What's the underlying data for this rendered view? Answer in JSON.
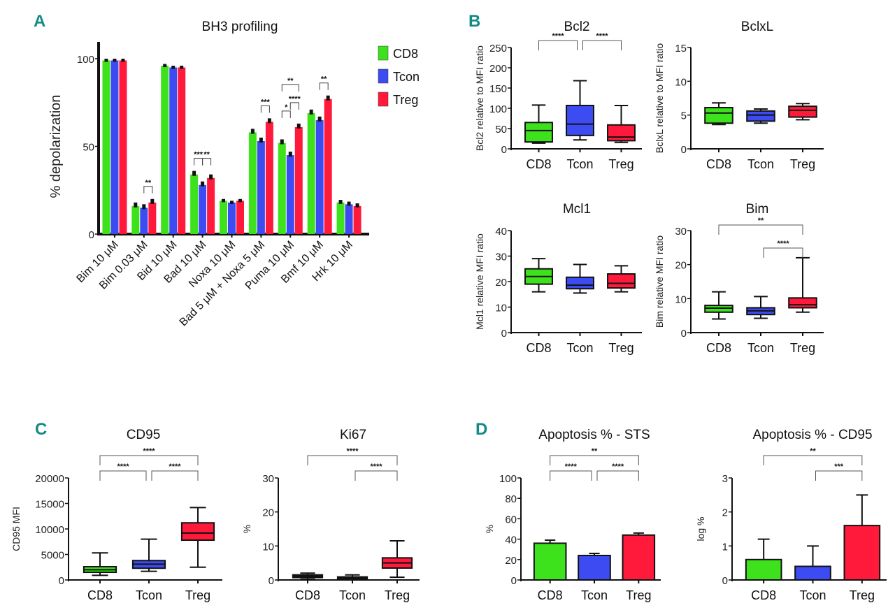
{
  "panel_labels": [
    "A",
    "B",
    "C",
    "D"
  ],
  "chart_data": [
    {
      "id": "A",
      "type": "bar",
      "title": "BH3 profiling",
      "ylabel": "% depolarization",
      "ylim": [
        0,
        100
      ],
      "yticks": [
        0,
        50,
        100
      ],
      "categories": [
        "Bim 10 μM",
        "Bim 0.03 μM",
        "Bid 10 μM",
        "Bad 10 μM",
        "Noxa 10 μM",
        "Bad 5 μM + Noxa 5 μM",
        "Puma 10 μM",
        "Bmf 10 μM",
        "Hrk 10 μM"
      ],
      "legend": {
        "placement": "top-right",
        "entries": [
          "CD8",
          "Tcon",
          "Treg"
        ]
      },
      "series": [
        {
          "name": "CD8",
          "color": "#3ee21c",
          "values": [
            99,
            16,
            96,
            34,
            19,
            58,
            52,
            69,
            18
          ],
          "err": [
            1,
            2,
            1,
            2,
            1,
            2,
            2,
            2,
            1.5
          ]
        },
        {
          "name": "Tcon",
          "color": "#3d4cf2",
          "values": [
            99,
            15,
            95,
            28,
            18,
            53,
            45,
            65,
            17
          ],
          "err": [
            1,
            2,
            1,
            2,
            1,
            2,
            2,
            2,
            1.5
          ]
        },
        {
          "name": "Treg",
          "color": "#ff1a3c",
          "values": [
            99,
            18,
            95,
            32,
            19,
            64,
            61,
            77,
            16
          ],
          "err": [
            1,
            2,
            1,
            2,
            1,
            2,
            2,
            2,
            1.5
          ]
        }
      ],
      "brackets": [
        {
          "cat": 1,
          "from": 1,
          "to": 2,
          "label": "**"
        },
        {
          "cat": 3,
          "from": 0,
          "to": 1,
          "label": "***"
        },
        {
          "cat": 3,
          "from": 1,
          "to": 2,
          "label": "**"
        },
        {
          "cat": 5,
          "from": 1,
          "to": 2,
          "label": "***"
        },
        {
          "cat": 6,
          "from": 0,
          "to": 1,
          "label": "*"
        },
        {
          "cat": 6,
          "from": 1,
          "to": 2,
          "label": "****"
        },
        {
          "cat": 6,
          "from": 0,
          "to": 2,
          "label": "**"
        },
        {
          "cat": 7,
          "from": 1,
          "to": 2,
          "label": "**"
        }
      ]
    },
    {
      "id": "B-Bcl2",
      "type": "box",
      "title": "Bcl2",
      "ylabel": "Bcl2 relative to MFI ratio",
      "ylim": [
        0,
        250
      ],
      "yticks": [
        0,
        50,
        100,
        150,
        200,
        250
      ],
      "categories": [
        "CD8",
        "Tcon",
        "Treg"
      ],
      "colors": [
        "#3ee21c",
        "#3d4cf2",
        "#ff1a3c"
      ],
      "boxes": [
        [
          14,
          17,
          45,
          65,
          108
        ],
        [
          22,
          33,
          61,
          107,
          168
        ],
        [
          16,
          20,
          29,
          59,
          107
        ]
      ],
      "brackets": [
        {
          "from": 0,
          "to": 1,
          "label": "****",
          "level": 0
        },
        {
          "from": 1,
          "to": 2,
          "label": "****",
          "level": 0
        }
      ]
    },
    {
      "id": "B-BclxL",
      "type": "box",
      "title": "BclxL",
      "ylabel": "BclxL relative to MFI ratio",
      "ylim": [
        0,
        15
      ],
      "yticks": [
        0,
        5,
        10,
        15
      ],
      "categories": [
        "CD8",
        "Tcon",
        "Treg"
      ],
      "colors": [
        "#3ee21c",
        "#3d4cf2",
        "#ff1a3c"
      ],
      "boxes": [
        [
          3.6,
          3.8,
          5.3,
          6.1,
          6.8
        ],
        [
          3.8,
          4.1,
          5.0,
          5.6,
          5.9
        ],
        [
          4.3,
          4.7,
          5.7,
          6.3,
          6.7
        ]
      ],
      "brackets": []
    },
    {
      "id": "B-Mcl1",
      "type": "box",
      "title": "Mcl1",
      "ylabel": "Mcl1 relative MFI ratio",
      "ylim": [
        0,
        40
      ],
      "yticks": [
        0,
        10,
        20,
        30,
        40
      ],
      "categories": [
        "CD8",
        "Tcon",
        "Treg"
      ],
      "colors": [
        "#3ee21c",
        "#3d4cf2",
        "#ff1a3c"
      ],
      "boxes": [
        [
          16,
          19,
          22,
          25,
          29
        ],
        [
          15.5,
          17.2,
          18.6,
          21.7,
          26.7
        ],
        [
          16,
          17.5,
          19.3,
          23,
          26.2
        ]
      ],
      "brackets": []
    },
    {
      "id": "B-Bim",
      "type": "box",
      "title": "Bim",
      "ylabel": "Bim relative MFI ratio",
      "ylim": [
        0,
        30
      ],
      "yticks": [
        0,
        10,
        20,
        30
      ],
      "categories": [
        "CD8",
        "Tcon",
        "Treg"
      ],
      "colors": [
        "#3ee21c",
        "#3d4cf2",
        "#ff1a3c"
      ],
      "boxes": [
        [
          4,
          6,
          7.2,
          8,
          12
        ],
        [
          4.2,
          5.3,
          6.4,
          7.3,
          10.6
        ],
        [
          6,
          7.3,
          8.2,
          10.2,
          22
        ]
      ],
      "brackets": [
        {
          "from": 0,
          "to": 2,
          "label": "**",
          "level": 1
        },
        {
          "from": 1,
          "to": 2,
          "label": "****",
          "level": 0
        }
      ]
    },
    {
      "id": "C-CD95",
      "type": "box",
      "title": "CD95",
      "ylabel": "CD95 MFI",
      "ylim": [
        0,
        20000
      ],
      "yticks": [
        0,
        5000,
        10000,
        15000,
        20000
      ],
      "categories": [
        "CD8",
        "Tcon",
        "Treg"
      ],
      "colors": [
        "#3ee21c",
        "#3d4cf2",
        "#ff1a3c"
      ],
      "boxes": [
        [
          900,
          1500,
          2000,
          2600,
          5300
        ],
        [
          1700,
          2300,
          3100,
          3800,
          8000
        ],
        [
          2500,
          7800,
          9200,
          11200,
          14200
        ]
      ],
      "brackets": [
        {
          "from": 0,
          "to": 1,
          "label": "****",
          "level": 0
        },
        {
          "from": 1,
          "to": 2,
          "label": "****",
          "level": 0
        },
        {
          "from": 0,
          "to": 2,
          "label": "****",
          "level": 1
        }
      ]
    },
    {
      "id": "C-Ki67",
      "type": "box",
      "title": "Ki67",
      "ylabel": "%",
      "ylim": [
        0,
        30
      ],
      "yticks": [
        0,
        10,
        20,
        30
      ],
      "categories": [
        "CD8",
        "Tcon",
        "Treg"
      ],
      "colors": [
        "#111111",
        "#111111",
        "#ff1a3c"
      ],
      "boxes": [
        [
          0.2,
          0.7,
          1.0,
          1.5,
          2.0
        ],
        [
          0.1,
          0.3,
          0.5,
          0.9,
          1.5
        ],
        [
          0.8,
          3.5,
          5,
          6.5,
          11.5
        ]
      ],
      "brackets": [
        {
          "from": 1,
          "to": 2,
          "label": "****",
          "level": 0
        },
        {
          "from": 0,
          "to": 2,
          "label": "****",
          "level": 1
        }
      ]
    },
    {
      "id": "D-STS",
      "type": "bar",
      "title": "Apoptosis % - STS",
      "ylabel": "%",
      "ylim": [
        0,
        100
      ],
      "yticks": [
        0,
        20,
        40,
        60,
        80,
        100
      ],
      "categories": [
        "CD8",
        "Tcon",
        "Treg"
      ],
      "colors": [
        "#3ee21c",
        "#3d4cf2",
        "#ff1a3c"
      ],
      "values": [
        36,
        24,
        44
      ],
      "err": [
        3,
        2,
        2
      ],
      "brackets": [
        {
          "from": 0,
          "to": 1,
          "label": "****",
          "level": 0
        },
        {
          "from": 1,
          "to": 2,
          "label": "****",
          "level": 0
        },
        {
          "from": 0,
          "to": 2,
          "label": "**",
          "level": 1
        }
      ]
    },
    {
      "id": "D-CD95",
      "type": "bar",
      "title": "Apoptosis % - CD95",
      "ylabel": "log %",
      "ylim": [
        0,
        3
      ],
      "yticks": [
        0,
        1,
        2,
        3
      ],
      "categories": [
        "CD8",
        "Tcon",
        "Treg"
      ],
      "colors": [
        "#3ee21c",
        "#3d4cf2",
        "#ff1a3c"
      ],
      "values": [
        0.6,
        0.4,
        1.6
      ],
      "err": [
        0.6,
        0.6,
        0.9
      ],
      "brackets": [
        {
          "from": 1,
          "to": 2,
          "label": "***",
          "level": 0
        },
        {
          "from": 0,
          "to": 2,
          "label": "**",
          "level": 1
        }
      ]
    }
  ]
}
